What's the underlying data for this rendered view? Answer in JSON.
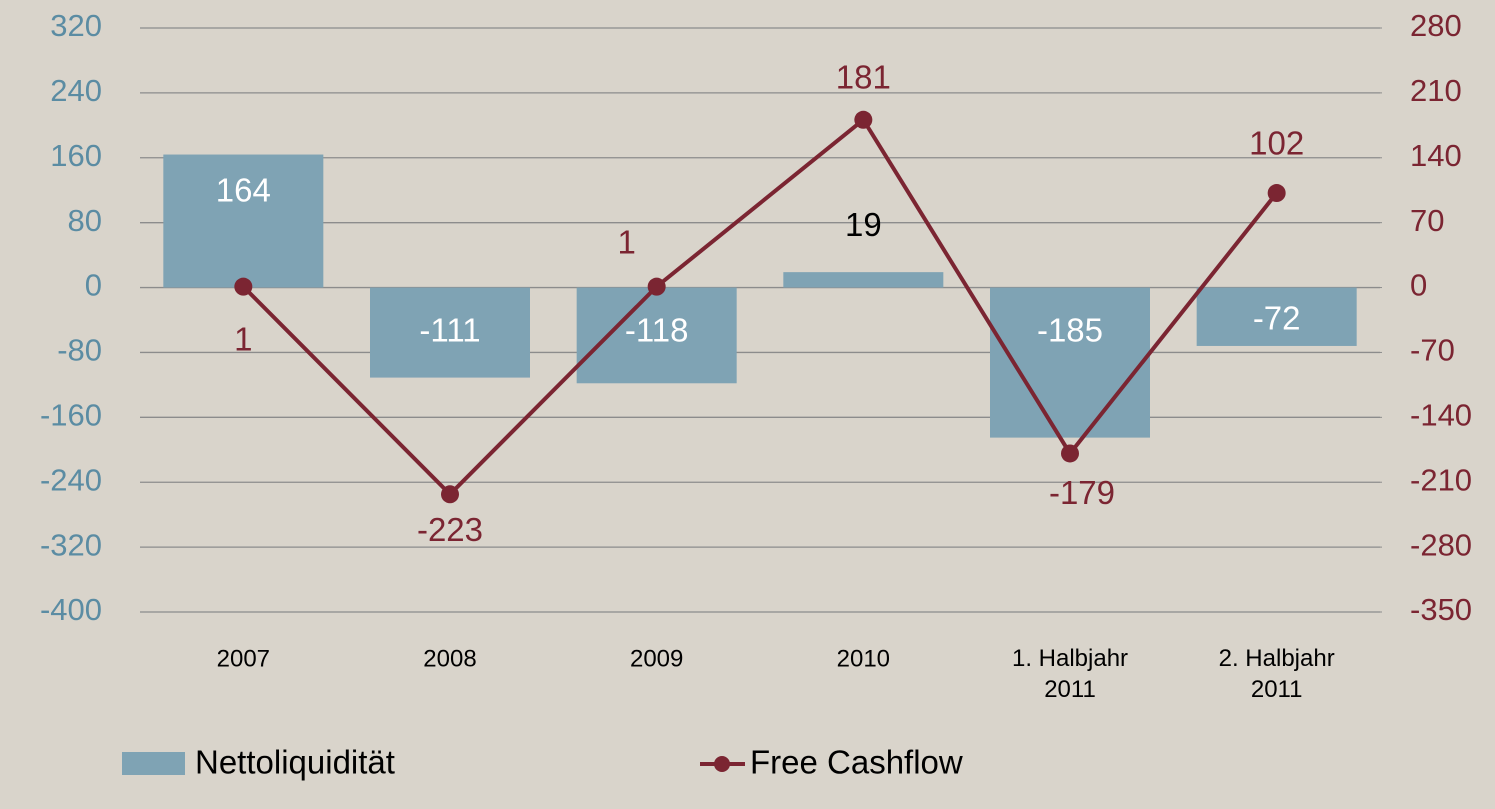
{
  "chart_data": {
    "type": "bar-line",
    "categories": [
      "2007",
      "2008",
      "2009",
      "2010",
      "1. Halbjahr\n2011",
      "2. Halbjahr\n2011"
    ],
    "series": [
      {
        "name": "Nettoliquidität",
        "type": "bar",
        "color": "#7fa3b4",
        "values": [
          164,
          -111,
          -118,
          19,
          -185,
          -72
        ]
      },
      {
        "name": "Free Cashflow",
        "type": "line",
        "axis": "y2",
        "color": "#7b2532",
        "values": [
          1,
          -223,
          1,
          181,
          -179,
          102
        ]
      }
    ],
    "ylim": [
      -400,
      320
    ],
    "yticks": [
      -400,
      -320,
      -240,
      -160,
      -80,
      0,
      80,
      160,
      240,
      320
    ],
    "y2lim": [
      -350,
      280
    ],
    "y2ticks": [
      -350,
      -280,
      -210,
      -140,
      -70,
      0,
      70,
      140,
      210,
      280
    ],
    "grid": true,
    "legend": "bottom"
  }
}
